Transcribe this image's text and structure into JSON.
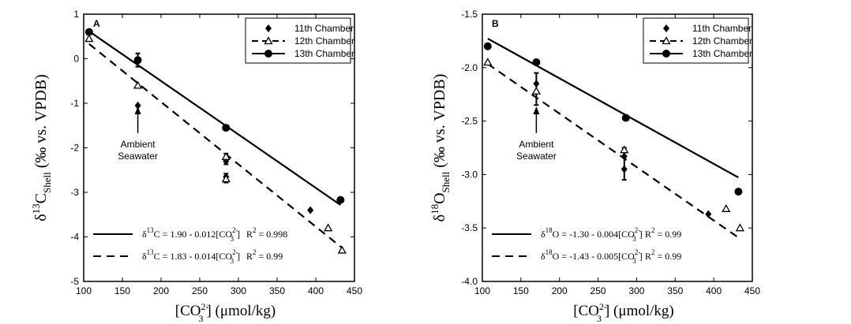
{
  "chart_data": [
    {
      "type": "scatter",
      "panel_label": "A",
      "xlim": [
        100,
        450
      ],
      "ylim": [
        -5,
        1
      ],
      "xticks": [
        100,
        150,
        200,
        250,
        300,
        350,
        400,
        450
      ],
      "yticks": [
        -5,
        -4,
        -3,
        -2,
        -1,
        0,
        1
      ],
      "ytick_labels": [
        "-5",
        "-4",
        "-3",
        "-2",
        "-1",
        "0",
        "1"
      ],
      "xlabel": {
        "pre": "[CO",
        "sup": "2-",
        "sub": "3",
        "post": "]  (μmol/kg)"
      },
      "ylabel": {
        "pre": "δ",
        "sup": "13",
        "mid": "C",
        "sub": "Shell",
        "post": " (‰ vs. VPDB)"
      },
      "legend": [
        "11th Chamber",
        "12th Chamber",
        "13th Chamber"
      ],
      "annotation": [
        "Ambient",
        "Seawater"
      ],
      "series": [
        {
          "name": "11th Chamber",
          "marker": "diamond",
          "points": [
            [
              170,
              -1.05
            ],
            [
              284,
              -2.3
            ],
            [
              284,
              -2.65
            ],
            [
              393,
              -3.4
            ]
          ]
        },
        {
          "name": "12th Chamber",
          "marker": "triangle",
          "points": [
            [
              107,
              0.45
            ],
            [
              170,
              -0.6
            ],
            [
              284,
              -2.2
            ],
            [
              284,
              -2.7
            ],
            [
              416,
              -3.8
            ],
            [
              434,
              -4.3
            ]
          ]
        },
        {
          "name": "13th Chamber",
          "marker": "circle",
          "points": [
            [
              107,
              0.6
            ],
            [
              170,
              -0.03
            ],
            [
              284,
              -1.55
            ],
            [
              432,
              -3.17
            ]
          ]
        }
      ],
      "errorbars": [
        [
          170,
          -0.03,
          0.15
        ],
        [
          284,
          -2.25,
          0.12
        ],
        [
          284,
          -2.68,
          0.1
        ]
      ],
      "fits": [
        {
          "style": "solid",
          "intercept": 1.9,
          "slope": -0.012,
          "x": [
            107,
            432
          ]
        },
        {
          "style": "dashed",
          "intercept": 1.83,
          "slope": -0.014,
          "x": [
            107,
            434
          ]
        }
      ],
      "equations": [
        {
          "style": "solid",
          "iso": "13",
          "el": "C",
          "text": " = 1.90 - 0.012[CO",
          "sup": "2-",
          "sub": "3",
          "close": "]",
          "r2": "= 0.998"
        },
        {
          "style": "dashed",
          "iso": "13",
          "el": "C",
          "text": " = 1.83 - 0.014[CO",
          "sup": "2-",
          "sub": "3",
          "close": "]",
          "r2": "= 0.99"
        }
      ]
    },
    {
      "type": "scatter",
      "panel_label": "B",
      "xlim": [
        100,
        450
      ],
      "ylim": [
        -4.0,
        -1.5
      ],
      "xticks": [
        100,
        150,
        200,
        250,
        300,
        350,
        400,
        450
      ],
      "yticks": [
        -4.0,
        -3.5,
        -3.0,
        -2.5,
        -2.0,
        -1.5
      ],
      "ytick_labels": [
        "-4.0",
        "-3.5",
        "-3.0",
        "-2.5",
        "-2.0",
        "-1.5"
      ],
      "xlabel": {
        "pre": "[CO",
        "sup": "2-",
        "sub": "3",
        "post": "]  (μmol/kg)"
      },
      "ylabel": {
        "pre": "δ",
        "sup": "18",
        "mid": "O",
        "sub": "Shell",
        "post": " (‰ vs. VPDB)"
      },
      "legend": [
        "11th Chamber",
        "12th Chamber",
        "13th Chamber"
      ],
      "annotation": [
        "Ambient",
        "Seawater"
      ],
      "series": [
        {
          "name": "11th Chamber",
          "marker": "diamond",
          "points": [
            [
              170,
              -2.15
            ],
            [
              284,
              -2.83
            ],
            [
              284,
              -2.95
            ],
            [
              393,
              -3.37
            ]
          ]
        },
        {
          "name": "12th Chamber",
          "marker": "triangle",
          "points": [
            [
              107,
              -1.95
            ],
            [
              170,
              -2.22
            ],
            [
              284,
              -2.77
            ],
            [
              416,
              -3.32
            ],
            [
              434,
              -3.5
            ]
          ]
        },
        {
          "name": "13th Chamber",
          "marker": "circle",
          "points": [
            [
              107,
              -1.8
            ],
            [
              170,
              -1.95
            ],
            [
              286,
              -2.47
            ],
            [
              432,
              -3.16
            ]
          ]
        }
      ],
      "errorbars": [
        [
          170,
          -2.2,
          0.15
        ],
        [
          284,
          -2.9,
          0.15
        ]
      ],
      "fits": [
        {
          "style": "solid",
          "intercept": -1.3,
          "slope": -0.004,
          "x": [
            107,
            432
          ]
        },
        {
          "style": "dashed",
          "intercept": -1.43,
          "slope": -0.005,
          "x": [
            107,
            434
          ]
        }
      ],
      "equations": [
        {
          "style": "solid",
          "iso": "18",
          "el": "O",
          "text": " = -1.30 - 0.004[CO",
          "sup": "2-",
          "sub": "3",
          "close": "]",
          "r2": "= 0.99"
        },
        {
          "style": "dashed",
          "iso": "18",
          "el": "O",
          "text": " = -1.43 - 0.005[CO",
          "sup": "2-",
          "sub": "3",
          "close": "]",
          "r2": "= 0.99"
        }
      ]
    }
  ]
}
